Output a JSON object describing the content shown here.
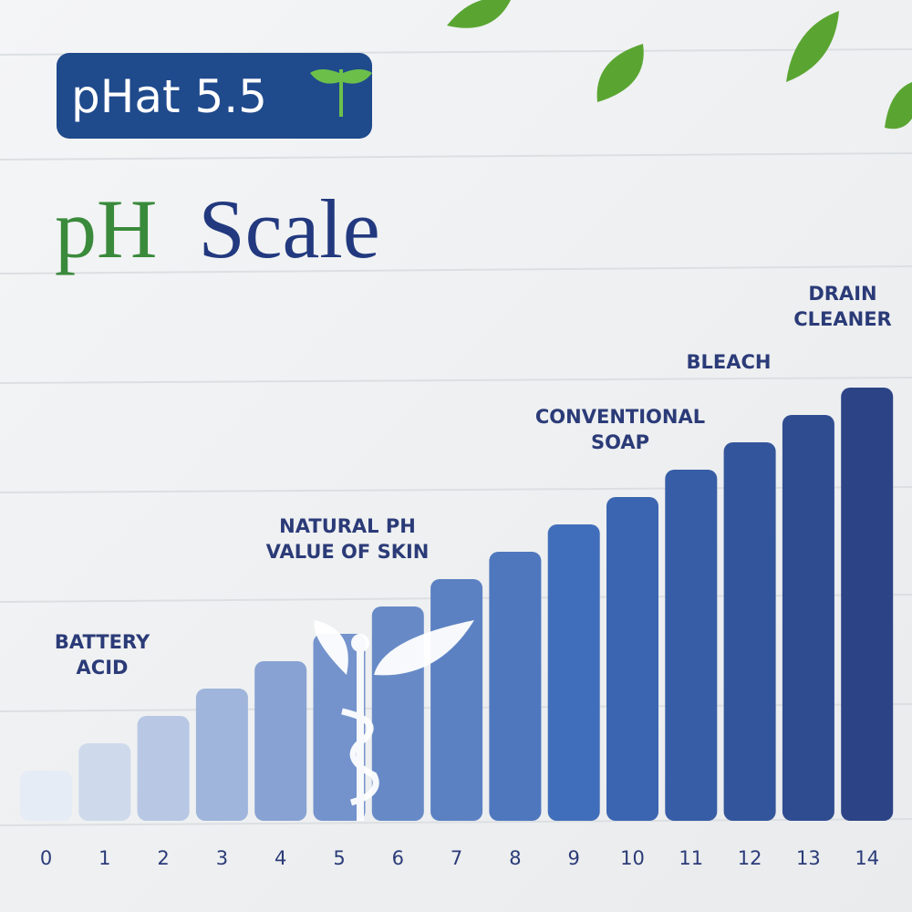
{
  "brand": {
    "name": "pHat 5.5"
  },
  "title": {
    "part1": "pH",
    "part2": "Scale"
  },
  "scale": [
    0,
    1,
    2,
    3,
    4,
    5,
    6,
    7,
    8,
    9,
    10,
    11,
    12,
    13,
    14
  ],
  "annotations": [
    {
      "lines": [
        "BATTERY",
        "ACID"
      ]
    },
    {
      "lines": [
        "NATURAL PH",
        "VALUE OF SKIN"
      ]
    },
    {
      "lines": [
        "CONVENTIONAL",
        "SOAP"
      ]
    },
    {
      "lines": [
        "BLEACH"
      ]
    },
    {
      "lines": [
        "DRAIN",
        "CLEANER"
      ]
    }
  ]
}
